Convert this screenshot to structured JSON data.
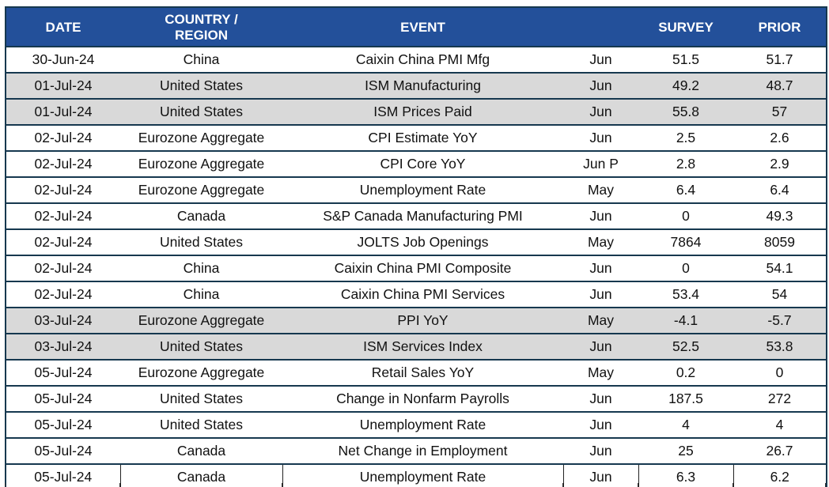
{
  "table": {
    "headers": {
      "date": "DATE",
      "country": "COUNTRY /",
      "country_line2": "REGION",
      "event": "EVENT",
      "period": "",
      "survey": "SURVEY",
      "prior": "PRIOR"
    },
    "colors": {
      "header_bg": "#23509a",
      "header_text": "#ffffff",
      "border": "#16384f",
      "shaded_row_bg": "#d9d9d9",
      "row_bg": "#ffffff"
    },
    "rows": [
      {
        "date": "30-Jun-24",
        "country": "China",
        "event": "Caixin China PMI Mfg",
        "period": "Jun",
        "survey": "51.5",
        "prior": "51.7",
        "shaded": false
      },
      {
        "date": "01-Jul-24",
        "country": "United States",
        "event": "ISM Manufacturing",
        "period": "Jun",
        "survey": "49.2",
        "prior": "48.7",
        "shaded": true
      },
      {
        "date": "01-Jul-24",
        "country": "United States",
        "event": "ISM Prices Paid",
        "period": "Jun",
        "survey": "55.8",
        "prior": "57",
        "shaded": true
      },
      {
        "date": "02-Jul-24",
        "country": "Eurozone Aggregate",
        "event": "CPI Estimate YoY",
        "period": "Jun",
        "survey": "2.5",
        "prior": "2.6",
        "shaded": false
      },
      {
        "date": "02-Jul-24",
        "country": "Eurozone Aggregate",
        "event": "CPI Core YoY",
        "period": "Jun P",
        "survey": "2.8",
        "prior": "2.9",
        "shaded": false
      },
      {
        "date": "02-Jul-24",
        "country": "Eurozone Aggregate",
        "event": "Unemployment Rate",
        "period": "May",
        "survey": "6.4",
        "prior": "6.4",
        "shaded": false
      },
      {
        "date": "02-Jul-24",
        "country": "Canada",
        "event": "S&P Canada Manufacturing PMI",
        "period": "Jun",
        "survey": "0",
        "prior": "49.3",
        "shaded": false
      },
      {
        "date": "02-Jul-24",
        "country": "United States",
        "event": "JOLTS Job Openings",
        "period": "May",
        "survey": "7864",
        "prior": "8059",
        "shaded": false
      },
      {
        "date": "02-Jul-24",
        "country": "China",
        "event": "Caixin China PMI Composite",
        "period": "Jun",
        "survey": "0",
        "prior": "54.1",
        "shaded": false
      },
      {
        "date": "02-Jul-24",
        "country": "China",
        "event": "Caixin China PMI Services",
        "period": "Jun",
        "survey": "53.4",
        "prior": "54",
        "shaded": false
      },
      {
        "date": "03-Jul-24",
        "country": "Eurozone Aggregate",
        "event": "PPI YoY",
        "period": "May",
        "survey": "-4.1",
        "prior": "-5.7",
        "shaded": true
      },
      {
        "date": "03-Jul-24",
        "country": "United States",
        "event": "ISM Services Index",
        "period": "Jun",
        "survey": "52.5",
        "prior": "53.8",
        "shaded": true
      },
      {
        "date": "05-Jul-24",
        "country": "Eurozone Aggregate",
        "event": "Retail Sales YoY",
        "period": "May",
        "survey": "0.2",
        "prior": "0",
        "shaded": false
      },
      {
        "date": "05-Jul-24",
        "country": "United States",
        "event": "Change in Nonfarm Payrolls",
        "period": "Jun",
        "survey": "187.5",
        "prior": "272",
        "shaded": false
      },
      {
        "date": "05-Jul-24",
        "country": "United States",
        "event": "Unemployment Rate",
        "period": "Jun",
        "survey": "4",
        "prior": "4",
        "shaded": false
      },
      {
        "date": "05-Jul-24",
        "country": "Canada",
        "event": "Net Change in Employment",
        "period": "Jun",
        "survey": "25",
        "prior": "26.7",
        "shaded": false
      },
      {
        "date": "05-Jul-24",
        "country": "Canada",
        "event": "Unemployment Rate",
        "period": "Jun",
        "survey": "6.3",
        "prior": "6.2",
        "shaded": false
      }
    ]
  }
}
